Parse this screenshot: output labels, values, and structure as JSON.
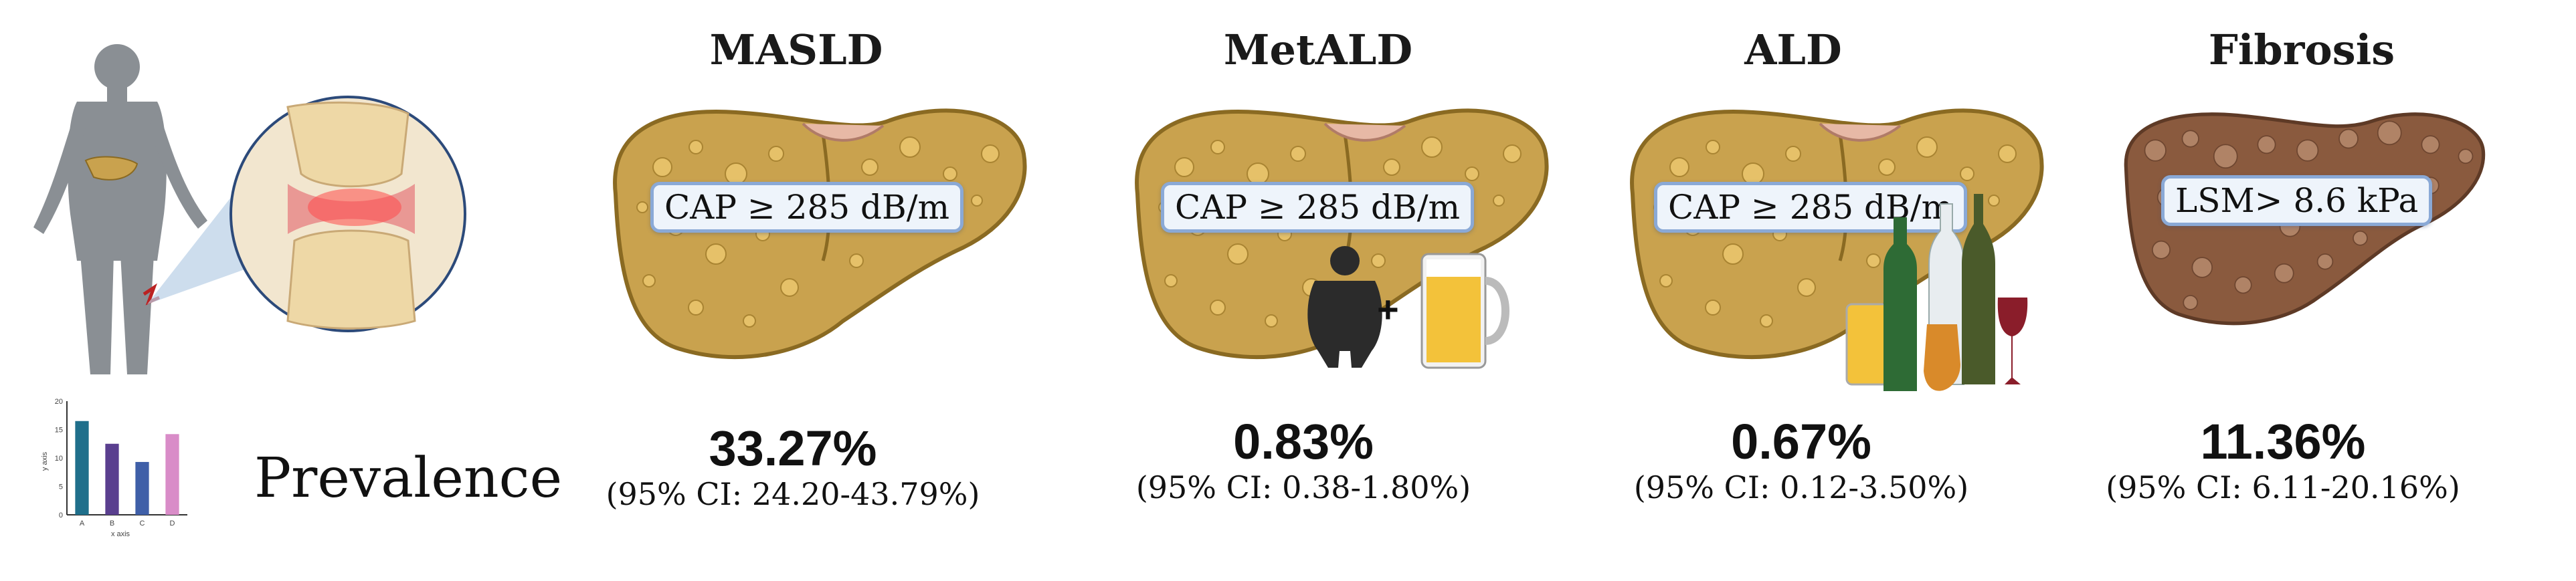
{
  "panels": [
    {
      "title": "MASLD",
      "criterion": "CAP ≥ 285 dB/m",
      "prevalence": "33.27%",
      "ci": "(95% CI: 24.20-43.79%)"
    },
    {
      "title": "MetALD",
      "criterion": "CAP ≥ 285 dB/m",
      "prevalence": "0.83%",
      "ci": "(95% CI: 0.38-1.80%)"
    },
    {
      "title": "ALD",
      "criterion": "CAP ≥ 285 dB/m",
      "prevalence": "0.67%",
      "ci": "(95% CI: 0.12-3.50%)"
    },
    {
      "title": "Fibrosis",
      "criterion": "LSM> 8.6 kPa",
      "prevalence": "11.36%",
      "ci": "(95% CI: 6.11-20.16%)"
    }
  ],
  "left": {
    "prevalence_label": "Prevalence",
    "plus_sign": "+"
  },
  "chart_data": {
    "type": "bar",
    "categories": [
      "A",
      "B",
      "C",
      "D"
    ],
    "values": [
      16.5,
      12.5,
      9.3,
      14.2
    ],
    "xlabel": "x axis",
    "ylabel": "y axis",
    "ylim": [
      0,
      20
    ],
    "yticks": [
      "0",
      "5",
      "10",
      "15",
      "20"
    ],
    "colors": [
      "#1f6f8b",
      "#5a3f8f",
      "#3f5fa8",
      "#d98cc8"
    ]
  },
  "colors": {
    "liver_fill": "#c9a24e",
    "liver_dark": "#8a6a22",
    "fibrosis_fill": "#8a5a3e",
    "box_border": "#8aa9d6"
  }
}
